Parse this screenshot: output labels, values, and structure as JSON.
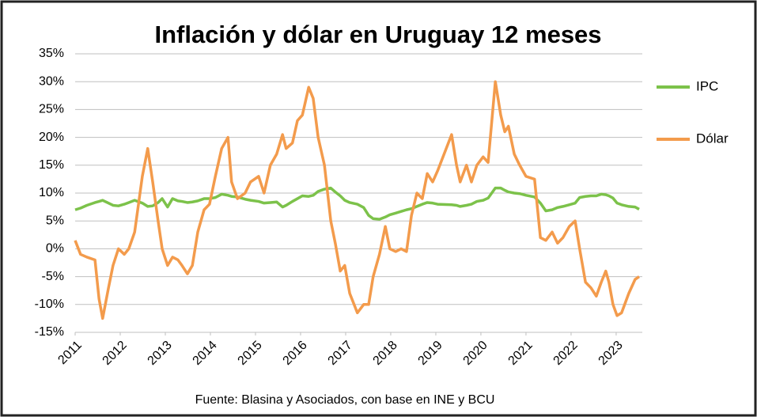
{
  "chart_data": {
    "type": "line",
    "title": "Inflación y dólar en Uruguay 12 meses",
    "source": "Fuente: Blasina y Asociados, con base en INE y BCU",
    "x": [
      2011.0,
      2011.12,
      2011.26,
      2011.44,
      2011.53,
      2011.61,
      2011.74,
      2011.84,
      2011.96,
      2012.09,
      2012.19,
      2012.32,
      2012.49,
      2012.61,
      2012.72,
      2012.84,
      2012.93,
      2013.05,
      2013.16,
      2013.28,
      2013.37,
      2013.49,
      2013.6,
      2013.72,
      2013.86,
      2013.98,
      2014.11,
      2014.25,
      2014.39,
      2014.47,
      2014.6,
      2014.77,
      2014.89,
      2015.07,
      2015.19,
      2015.33,
      2015.47,
      2015.6,
      2015.68,
      2015.82,
      2015.93,
      2016.04,
      2016.18,
      2016.28,
      2016.39,
      2016.53,
      2016.67,
      2016.77,
      2016.88,
      2016.98,
      2017.09,
      2017.26,
      2017.4,
      2017.51,
      2017.61,
      2017.75,
      2017.88,
      2017.98,
      2018.11,
      2018.23,
      2018.35,
      2018.46,
      2018.58,
      2018.7,
      2018.81,
      2018.93,
      2019.04,
      2019.35,
      2019.46,
      2019.54,
      2019.68,
      2019.79,
      2019.91,
      2020.05,
      2020.16,
      2020.32,
      2020.44,
      2020.53,
      2020.61,
      2020.74,
      2020.86,
      2021.0,
      2021.19,
      2021.32,
      2021.44,
      2021.58,
      2021.7,
      2021.82,
      2021.96,
      2022.09,
      2022.19,
      2022.32,
      2022.44,
      2022.56,
      2022.67,
      2022.77,
      2022.84,
      2022.93,
      2023.02,
      2023.12,
      2023.28,
      2023.42,
      2023.51
    ],
    "series": [
      {
        "name": "IPC",
        "color": "#7cc24a",
        "values": [
          7,
          7.3,
          7.8,
          8.3,
          8.5,
          8.7,
          8.2,
          7.8,
          7.7,
          8,
          8.3,
          8.7,
          8.2,
          7.6,
          7.7,
          8.3,
          9,
          7.5,
          9,
          8.6,
          8.5,
          8.3,
          8.4,
          8.6,
          9,
          9,
          9.2,
          9.8,
          9.6,
          9.4,
          9.3,
          8.9,
          8.7,
          8.5,
          8.2,
          8.3,
          8.4,
          7.5,
          7.8,
          8.5,
          9,
          9.5,
          9.4,
          9.6,
          10.3,
          10.7,
          10.9,
          10.2,
          9.5,
          8.7,
          8.3,
          8,
          7.4,
          6,
          5.4,
          5.3,
          5.7,
          6.1,
          6.4,
          6.7,
          7,
          7.2,
          7.6,
          8,
          8.3,
          8.2,
          8,
          7.9,
          7.8,
          7.6,
          7.8,
          8,
          8.5,
          8.7,
          9.1,
          10.9,
          10.9,
          10.5,
          10.2,
          10,
          9.9,
          9.6,
          9.3,
          8.2,
          6.8,
          7,
          7.4,
          7.6,
          7.9,
          8.2,
          9.2,
          9.4,
          9.5,
          9.5,
          9.8,
          9.7,
          9.5,
          9.1,
          8.2,
          7.9,
          7.6,
          7.5,
          7.1
        ]
      },
      {
        "name": "Dólar",
        "color": "#f39b4c",
        "values": [
          1.5,
          -1,
          -1.5,
          -2,
          -9,
          -12.5,
          -7,
          -3,
          0,
          -1,
          0,
          3,
          13,
          18,
          12,
          5,
          0,
          -3,
          -1.5,
          -2,
          -3,
          -4.5,
          -3,
          3,
          7,
          8,
          13,
          18,
          20,
          12,
          9,
          10,
          12,
          13,
          10,
          15,
          17,
          20.5,
          18,
          19,
          23,
          24,
          29,
          27,
          20,
          15,
          5,
          1,
          -4,
          -3,
          -8,
          -11.5,
          -10,
          -10,
          -5,
          -1,
          4,
          0,
          -0.5,
          0,
          -0.5,
          6,
          10,
          9,
          13.5,
          12,
          14,
          20.5,
          15,
          12,
          15,
          12,
          15,
          16.5,
          15.5,
          30,
          24,
          21,
          22,
          17,
          15,
          13,
          12.5,
          2,
          1.5,
          3,
          1,
          2,
          4,
          5,
          0,
          -6,
          -7,
          -8.5,
          -6,
          -4,
          -6,
          -10,
          -12,
          -11.5,
          -8,
          -5.5,
          -5
        ]
      }
    ],
    "xlim": [
      2011,
      2023.58
    ],
    "xticks": [
      2011,
      2012,
      2013,
      2014,
      2015,
      2016,
      2017,
      2018,
      2019,
      2020,
      2021,
      2022,
      2023
    ],
    "ylim": [
      -15,
      35
    ],
    "yticks": [
      {
        "value": -15,
        "label": "-15%"
      },
      {
        "value": -10,
        "label": "-10%"
      },
      {
        "value": -5,
        "label": "-5%"
      },
      {
        "value": 0,
        "label": "0%"
      },
      {
        "value": 5,
        "label": "5%"
      },
      {
        "value": 10,
        "label": "10%"
      },
      {
        "value": 15,
        "label": "15%"
      },
      {
        "value": 20,
        "label": "20%"
      },
      {
        "value": 25,
        "label": "25%"
      },
      {
        "value": 30,
        "label": "30%"
      },
      {
        "value": 35,
        "label": "35%"
      }
    ],
    "grid": true,
    "legend": "right"
  }
}
